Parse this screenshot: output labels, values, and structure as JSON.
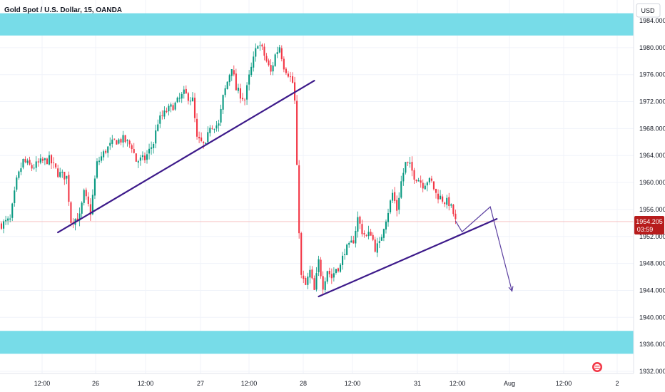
{
  "header": {
    "title": "Gold Spot / U.S. Dollar, 15, OANDA"
  },
  "currency_button": {
    "label": "USD"
  },
  "price_label": {
    "price": "1954.205",
    "countdown": "03:59",
    "color": "#b71c1c"
  },
  "colors": {
    "up": "#089981",
    "down": "#f23645",
    "zone": "#77dce8",
    "trendline": "#3d1a8a",
    "projection": "#5b3fa0",
    "grid": "#f0f3fa",
    "price_line": "#f5a3a3"
  },
  "chart_data": {
    "type": "candlestick",
    "instrument": "Gold Spot / U.S. Dollar",
    "timeframe": "15",
    "source": "OANDA",
    "ylim": [
      1931.5,
      1906.0
    ],
    "y_ticks": [
      "1984.000",
      "1980.000",
      "1976.000",
      "1972.000",
      "1968.000",
      "1964.000",
      "1960.000",
      "1956.000",
      "1952.000",
      "1948.000",
      "1944.000",
      "1940.000",
      "1936.000",
      "1932.000"
    ],
    "x_ticks": [
      "12:00",
      "26",
      "12:00",
      "27",
      "12:00",
      "28",
      "12:00",
      "31",
      "12:00",
      "Aug",
      "12:00",
      "2"
    ],
    "last_price": 1954.205,
    "price_path": [
      [
        0,
        1953.8
      ],
      [
        4,
        1954.4
      ],
      [
        7,
        1960.2
      ],
      [
        10,
        1963.2
      ],
      [
        14,
        1962.2
      ],
      [
        18,
        1963.0
      ],
      [
        22,
        1963.4
      ],
      [
        26,
        1961.4
      ],
      [
        30,
        1960.8
      ],
      [
        32,
        1954.3
      ],
      [
        36,
        1954.9
      ],
      [
        38,
        1958.4
      ],
      [
        41,
        1955.6
      ],
      [
        44,
        1962.8
      ],
      [
        48,
        1964.8
      ],
      [
        52,
        1966.1
      ],
      [
        56,
        1966.4
      ],
      [
        60,
        1965.4
      ],
      [
        62,
        1963.2
      ],
      [
        66,
        1963.5
      ],
      [
        70,
        1965.9
      ],
      [
        72,
        1969.0
      ],
      [
        76,
        1970.6
      ],
      [
        80,
        1971.6
      ],
      [
        84,
        1973.2
      ],
      [
        88,
        1972.2
      ],
      [
        90,
        1966.4
      ],
      [
        94,
        1965.3
      ],
      [
        96,
        1968.5
      ],
      [
        100,
        1968.5
      ],
      [
        102,
        1972.6
      ],
      [
        106,
        1977.3
      ],
      [
        108,
        1973.8
      ],
      [
        112,
        1972.3
      ],
      [
        114,
        1975.6
      ],
      [
        118,
        1980.8
      ],
      [
        120,
        1979.7
      ],
      [
        124,
        1976.3
      ],
      [
        126,
        1978.9
      ],
      [
        128,
        1980.2
      ],
      [
        130,
        1977.3
      ],
      [
        132,
        1976.2
      ],
      [
        134,
        1974.8
      ],
      [
        135,
        1972.0
      ],
      [
        136,
        1962.0
      ],
      [
        137,
        1953.0
      ],
      [
        138,
        1946.0
      ],
      [
        140,
        1944.7
      ],
      [
        142,
        1946.8
      ],
      [
        144,
        1943.9
      ],
      [
        146,
        1948.3
      ],
      [
        148,
        1944.7
      ],
      [
        150,
        1947.1
      ],
      [
        152,
        1945.9
      ],
      [
        154,
        1947.3
      ],
      [
        156,
        1947.6
      ],
      [
        158,
        1950.0
      ],
      [
        160,
        1950.4
      ],
      [
        162,
        1951.5
      ],
      [
        164,
        1954.7
      ],
      [
        166,
        1952.8
      ],
      [
        168,
        1951.9
      ],
      [
        170,
        1952.6
      ],
      [
        172,
        1950.3
      ],
      [
        174,
        1950.8
      ],
      [
        176,
        1953.6
      ],
      [
        178,
        1955.8
      ],
      [
        180,
        1958.4
      ],
      [
        182,
        1956.0
      ],
      [
        184,
        1960.1
      ],
      [
        186,
        1962.8
      ],
      [
        188,
        1962.4
      ],
      [
        190,
        1961.0
      ],
      [
        192,
        1960.5
      ],
      [
        194,
        1959.7
      ],
      [
        196,
        1960.3
      ],
      [
        198,
        1960.0
      ],
      [
        200,
        1958.3
      ],
      [
        202,
        1957.8
      ],
      [
        204,
        1957.2
      ],
      [
        206,
        1957.0
      ],
      [
        208,
        1955.4
      ],
      [
        209,
        1954.2
      ]
    ],
    "trendlines": [
      {
        "from": [
          26,
          1952.6
        ],
        "to": [
          144,
          1975.1
        ]
      },
      {
        "from": [
          146,
          1943.1
        ],
        "to": [
          228,
          1954.6
        ]
      }
    ],
    "zones": [
      {
        "from": 1985.1,
        "to": 1981.8
      },
      {
        "from": 1938.0,
        "to": 1934.6
      }
    ],
    "projection": [
      [
        209,
        1954.3
      ],
      [
        212,
        1952.7
      ],
      [
        225,
        1956.4
      ],
      [
        235,
        1943.9
      ]
    ]
  }
}
